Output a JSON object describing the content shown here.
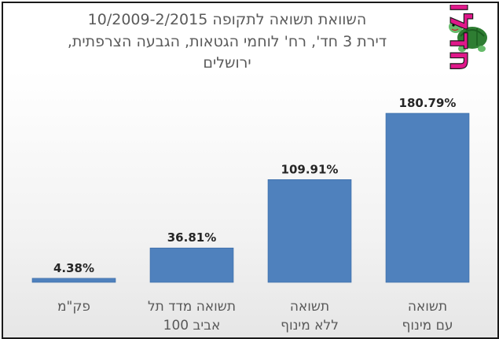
{
  "chart_data": {
    "type": "bar",
    "title_lines": [
      "השוואת תשואה לתקופה 10/2009-2/2015",
      "דירת 3 חד', רח' לוחמי הגטאות, הגבעה הצרפתית,",
      "ירושלים"
    ],
    "categories": [
      [
        "פק\"מ"
      ],
      [
        "תשואה מדד תל",
        "אביב 100"
      ],
      [
        "תשואה",
        "ללא מינוף"
      ],
      [
        "תשואה",
        "עם מינוף"
      ]
    ],
    "values": [
      4.38,
      36.81,
      109.91,
      180.79
    ],
    "data_labels": [
      "4.38%",
      "36.81%",
      "109.91%",
      "180.79%"
    ],
    "ylim": [
      0,
      180.79
    ],
    "bar_color": "#4f81bd",
    "grid": false,
    "legend": "none"
  },
  "logo": {
    "text": "חדלון",
    "icon": "turtle-icon"
  }
}
